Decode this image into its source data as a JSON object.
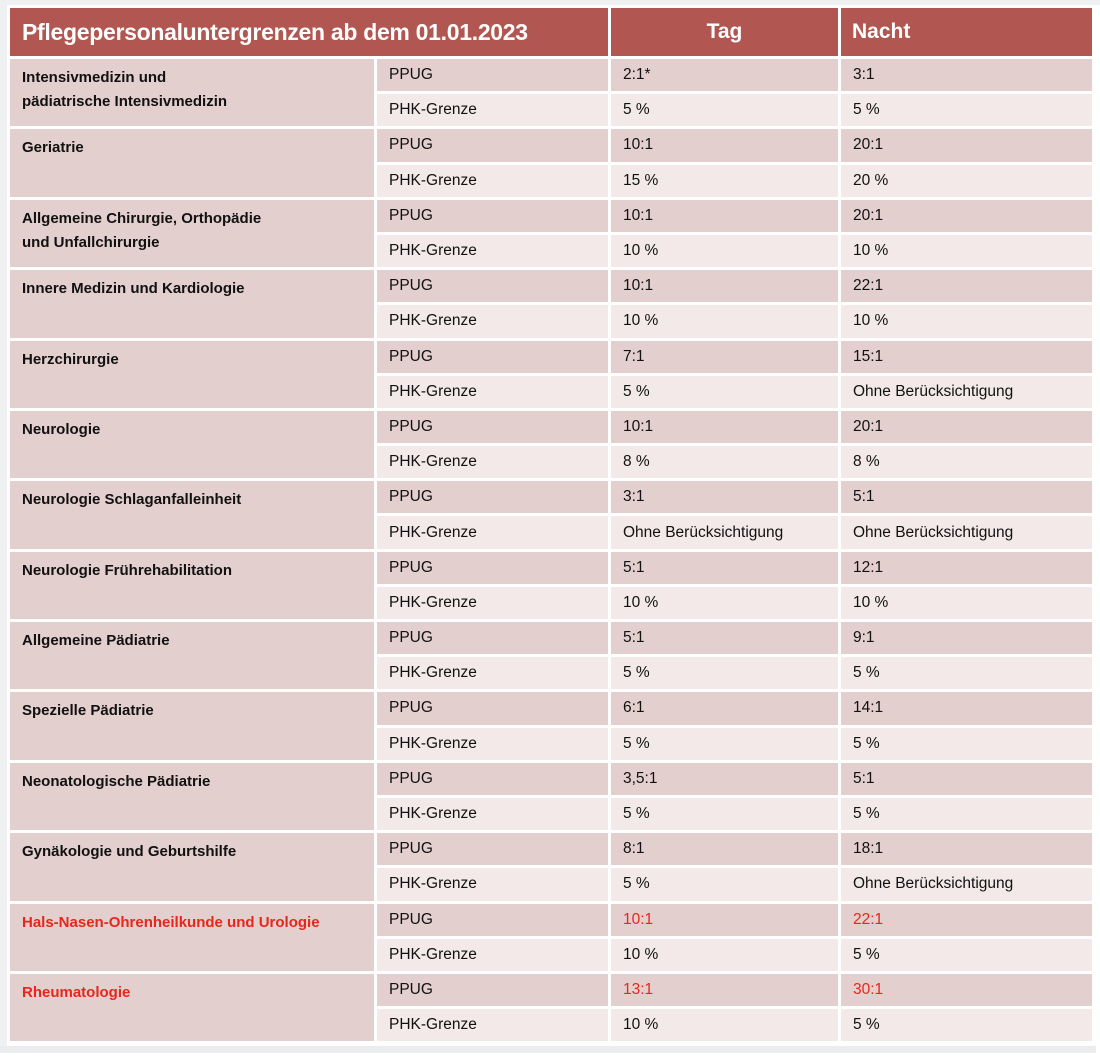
{
  "page": {
    "colors": {
      "header_bg": "#b15651",
      "row_dark": "#e3cfcd",
      "row_light": "#f2e9e8",
      "highlight_red": "#e8261b",
      "text": "#111111",
      "header_text": "#ffffff",
      "edge_gray": "#eff0f2"
    }
  },
  "table": {
    "title": "Pflegepersonaluntergrenzen ab dem 01.01.2023",
    "columns": {
      "day": "Tag",
      "night": "Nacht"
    },
    "row_labels": {
      "ppug": "PPUG",
      "phk": "PHK-Grenze"
    },
    "groups": [
      {
        "department": "Intensivmedizin und\npädiatrische Intensivmedizin",
        "highlight": false,
        "ppug_day": "2:1*",
        "ppug_night": "3:1",
        "phk_day": "5 %",
        "phk_night": "5 %"
      },
      {
        "department": "Geriatrie",
        "highlight": false,
        "ppug_day": "10:1",
        "ppug_night": "20:1",
        "phk_day": "15 %",
        "phk_night": "20 %"
      },
      {
        "department": "Allgemeine Chirurgie, Orthopädie\nund Unfallchirurgie",
        "highlight": false,
        "ppug_day": "10:1",
        "ppug_night": "20:1",
        "phk_day": "10 %",
        "phk_night": "10 %"
      },
      {
        "department": "Innere Medizin und Kardiologie",
        "highlight": false,
        "ppug_day": "10:1",
        "ppug_night": "22:1",
        "phk_day": "10 %",
        "phk_night": "10 %"
      },
      {
        "department": "Herzchirurgie",
        "highlight": false,
        "ppug_day": "7:1",
        "ppug_night": "15:1",
        "phk_day": "5 %",
        "phk_night": "Ohne Berücksichtigung"
      },
      {
        "department": "Neurologie",
        "highlight": false,
        "ppug_day": "10:1",
        "ppug_night": "20:1",
        "phk_day": "8 %",
        "phk_night": "8 %"
      },
      {
        "department": "Neurologie Schlaganfalleinheit",
        "highlight": false,
        "ppug_day": "3:1",
        "ppug_night": "5:1",
        "phk_day": "Ohne Berücksichtigung",
        "phk_night": "Ohne Berücksichtigung"
      },
      {
        "department": "Neurologie Frührehabilitation",
        "highlight": false,
        "ppug_day": "5:1",
        "ppug_night": "12:1",
        "phk_day": "10 %",
        "phk_night": "10 %"
      },
      {
        "department": "Allgemeine Pädiatrie",
        "highlight": false,
        "ppug_day": "5:1",
        "ppug_night": "9:1",
        "phk_day": "5 %",
        "phk_night": "5 %"
      },
      {
        "department": "Spezielle Pädiatrie",
        "highlight": false,
        "ppug_day": "6:1",
        "ppug_night": "14:1",
        "phk_day": "5 %",
        "phk_night": "5 %"
      },
      {
        "department": "Neonatologische Pädiatrie",
        "highlight": false,
        "ppug_day": "3,5:1",
        "ppug_night": "5:1",
        "phk_day": "5 %",
        "phk_night": "5 %"
      },
      {
        "department": "Gynäkologie und Geburtshilfe",
        "highlight": false,
        "ppug_day": "8:1",
        "ppug_night": "18:1",
        "phk_day": "5 %",
        "phk_night": "Ohne Berücksichtigung"
      },
      {
        "department": "Hals-Nasen-Ohrenheilkunde und Urologie",
        "highlight": true,
        "ppug_day": "10:1",
        "ppug_night": "22:1",
        "phk_day": "10 %",
        "phk_night": "5 %"
      },
      {
        "department": "Rheumatologie",
        "highlight": true,
        "ppug_day": "13:1",
        "ppug_night": "30:1",
        "phk_day": "10 %",
        "phk_night": "5 %"
      }
    ]
  }
}
